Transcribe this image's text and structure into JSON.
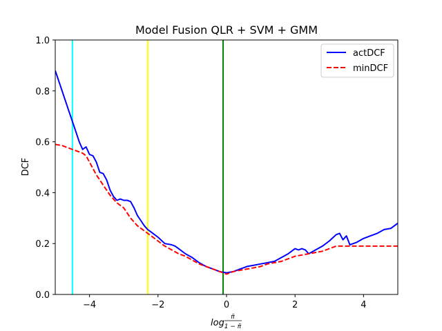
{
  "chart_data": {
    "type": "line",
    "title": "Model Fusion QLR + SVM + GMM",
    "xlabel": "log π̃/(1−π̃)",
    "xlabel_parts": {
      "prefix": "log",
      "numerator": "π̃",
      "denominator": "1 − π̃"
    },
    "ylabel": "DCF",
    "xlim": [
      -5,
      5
    ],
    "ylim": [
      0,
      1
    ],
    "xticks": [
      -4,
      -2,
      0,
      2,
      4
    ],
    "xtick_labels": [
      "−4",
      "−2",
      "0",
      "2",
      "4"
    ],
    "yticks": [
      0.0,
      0.2,
      0.4,
      0.6,
      0.8,
      1.0
    ],
    "ytick_labels": [
      "0.0",
      "0.2",
      "0.4",
      "0.6",
      "0.8",
      "1.0"
    ],
    "grid": false,
    "legend_position": "top-right",
    "vlines": [
      {
        "x": -4.5,
        "color": "#00ffff"
      },
      {
        "x": -2.3,
        "color": "#ffff00"
      },
      {
        "x": -0.1,
        "color": "#008000"
      }
    ],
    "series": [
      {
        "name": "actDCF",
        "color": "#0000ff",
        "style": "solid",
        "x": [
          -5.0,
          -4.8,
          -4.6,
          -4.4,
          -4.3,
          -4.2,
          -4.1,
          -4.0,
          -3.9,
          -3.8,
          -3.7,
          -3.6,
          -3.5,
          -3.4,
          -3.3,
          -3.2,
          -3.1,
          -3.0,
          -2.9,
          -2.8,
          -2.7,
          -2.6,
          -2.5,
          -2.4,
          -2.3,
          -2.2,
          -2.0,
          -1.8,
          -1.6,
          -1.5,
          -1.4,
          -1.2,
          -1.0,
          -0.8,
          -0.6,
          -0.4,
          -0.2,
          0.0,
          0.2,
          0.4,
          0.6,
          0.8,
          1.0,
          1.2,
          1.4,
          1.6,
          1.8,
          1.9,
          2.0,
          2.1,
          2.2,
          2.3,
          2.4,
          2.6,
          2.8,
          3.0,
          3.2,
          3.3,
          3.4,
          3.5,
          3.6,
          3.8,
          4.0,
          4.2,
          4.4,
          4.6,
          4.8,
          5.0
        ],
        "y": [
          0.88,
          0.8,
          0.72,
          0.64,
          0.6,
          0.57,
          0.58,
          0.55,
          0.545,
          0.52,
          0.48,
          0.475,
          0.45,
          0.41,
          0.385,
          0.37,
          0.375,
          0.37,
          0.37,
          0.365,
          0.34,
          0.31,
          0.29,
          0.27,
          0.255,
          0.245,
          0.225,
          0.2,
          0.195,
          0.19,
          0.18,
          0.16,
          0.145,
          0.125,
          0.11,
          0.1,
          0.09,
          0.085,
          0.09,
          0.1,
          0.11,
          0.115,
          0.12,
          0.125,
          0.13,
          0.145,
          0.16,
          0.17,
          0.18,
          0.175,
          0.18,
          0.175,
          0.16,
          0.175,
          0.19,
          0.21,
          0.235,
          0.24,
          0.215,
          0.23,
          0.195,
          0.205,
          0.22,
          0.23,
          0.24,
          0.255,
          0.26,
          0.28
        ]
      },
      {
        "name": "minDCF",
        "color": "#ff0000",
        "style": "dashed",
        "x": [
          -5.0,
          -4.8,
          -4.6,
          -4.4,
          -4.2,
          -4.1,
          -4.0,
          -3.8,
          -3.6,
          -3.4,
          -3.2,
          -3.0,
          -2.8,
          -2.6,
          -2.4,
          -2.2,
          -2.0,
          -1.8,
          -1.6,
          -1.4,
          -1.2,
          -1.0,
          -0.8,
          -0.6,
          -0.4,
          -0.2,
          0.0,
          0.2,
          0.4,
          0.6,
          0.8,
          1.0,
          1.2,
          1.4,
          1.6,
          1.8,
          2.0,
          2.2,
          2.4,
          2.6,
          2.8,
          3.0,
          3.2,
          3.4,
          3.6,
          3.8,
          4.0,
          4.2,
          4.4,
          4.6,
          4.8,
          5.0
        ],
        "y": [
          0.59,
          0.585,
          0.575,
          0.565,
          0.555,
          0.545,
          0.52,
          0.47,
          0.43,
          0.39,
          0.36,
          0.34,
          0.3,
          0.27,
          0.25,
          0.23,
          0.21,
          0.19,
          0.175,
          0.16,
          0.15,
          0.135,
          0.12,
          0.11,
          0.1,
          0.09,
          0.08,
          0.09,
          0.095,
          0.1,
          0.105,
          0.11,
          0.12,
          0.125,
          0.13,
          0.14,
          0.15,
          0.155,
          0.16,
          0.165,
          0.17,
          0.18,
          0.19,
          0.19,
          0.19,
          0.19,
          0.19,
          0.19,
          0.19,
          0.19,
          0.19,
          0.19
        ]
      }
    ]
  }
}
